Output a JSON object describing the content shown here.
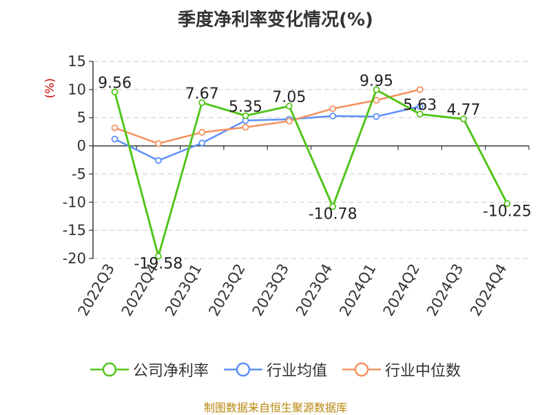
{
  "title": "季度净利率变化情况(%)",
  "source_text": "制图数据来自恒生聚源数据库",
  "chart_data": {
    "type": "line",
    "title": "季度净利率变化情况(%)",
    "ylabel": "(%)",
    "xlabel": "",
    "ylim": [
      -20,
      15
    ],
    "yticks": [
      15,
      10,
      5,
      0,
      -5,
      -10,
      -15,
      -20
    ],
    "grid": true,
    "legend_position": "bottom",
    "categories": [
      "2022Q3",
      "2022Q4",
      "2023Q1",
      "2023Q2",
      "2023Q3",
      "2023Q4",
      "2024Q1",
      "2024Q2",
      "2024Q3",
      "2024Q4"
    ],
    "series": [
      {
        "name": "公司净利率",
        "color": "#52c41a",
        "values": [
          9.56,
          -19.58,
          7.67,
          5.35,
          7.05,
          -10.78,
          9.95,
          5.63,
          4.77,
          -10.25
        ],
        "data_labels": [
          "9.56",
          "-19.58",
          "7.67",
          "5.35",
          "7.05",
          "-10.78",
          "9.95",
          "5.63",
          "4.77",
          "-10.25"
        ]
      },
      {
        "name": "行业均值",
        "color": "#5b8ff9",
        "values": [
          1.2,
          -2.6,
          0.5,
          4.5,
          4.7,
          5.3,
          5.2,
          7.0,
          null,
          null
        ]
      },
      {
        "name": "行业中位数",
        "color": "#f4915e",
        "values": [
          3.2,
          0.4,
          2.4,
          3.3,
          4.4,
          6.6,
          8.1,
          10.0,
          null,
          null
        ]
      }
    ]
  }
}
